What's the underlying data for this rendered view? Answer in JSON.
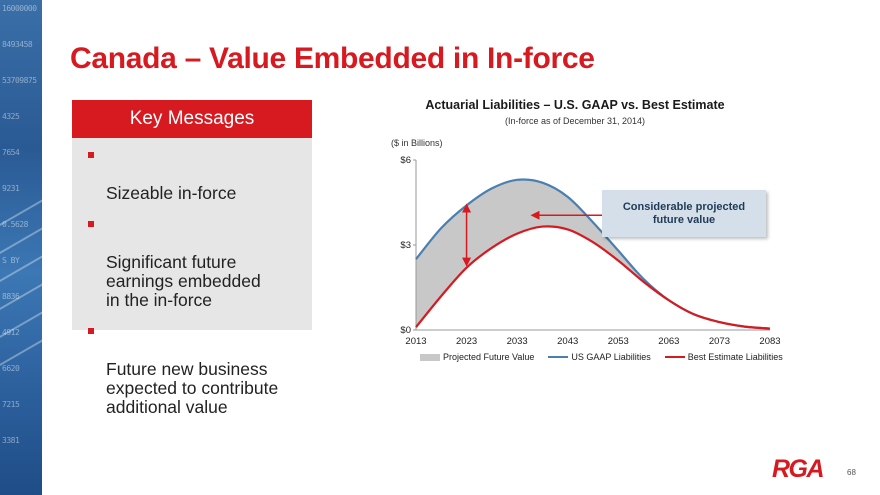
{
  "slide": {
    "title": "Canada – Value Embedded in In-force",
    "page_number": "68",
    "logo_text": "RGA",
    "left_strip": {
      "ticker_lines": [
        "16000000",
        "8493458",
        "53709875",
        "4325",
        "7654",
        "9231",
        "0.5628",
        "S BY",
        "8836",
        "4912",
        "6620",
        "7215",
        "3381"
      ]
    }
  },
  "key_messages": {
    "header": "Key Messages",
    "items": [
      "Sizeable in-force",
      "Significant future earnings embedded\nin the in-force",
      "Future new business expected to contribute additional value"
    ]
  },
  "callout": {
    "text": "Considerable projected future value"
  },
  "chart_data": {
    "type": "area",
    "title": "Actuarial Liabilities – U.S. GAAP vs. Best Estimate",
    "subtitle": "(In-force as of December 31, 2014)",
    "unit_label": "($ in Billions)",
    "xlim": [
      2013,
      2083
    ],
    "ylim": [
      0,
      6
    ],
    "x_ticks": [
      "2013",
      "2023",
      "2033",
      "2043",
      "2053",
      "2063",
      "2073",
      "2083"
    ],
    "y_ticks": [
      {
        "value": 0,
        "label": "$0"
      },
      {
        "value": 3,
        "label": "$3"
      },
      {
        "value": 6,
        "label": "$6"
      }
    ],
    "x": [
      2013,
      2018,
      2023,
      2028,
      2033,
      2038,
      2043,
      2048,
      2053,
      2058,
      2063,
      2068,
      2073,
      2078,
      2083
    ],
    "series": [
      {
        "name": "US GAAP Liabilities",
        "color": "#4a7fb0",
        "values": [
          2.5,
          3.6,
          4.4,
          5.0,
          5.3,
          5.2,
          4.7,
          3.8,
          2.8,
          1.8,
          1.05,
          0.55,
          0.28,
          0.12,
          0.05
        ]
      },
      {
        "name": "Best Estimate Liabilities",
        "color": "#d71920",
        "values": [
          0.1,
          1.2,
          2.2,
          2.9,
          3.4,
          3.65,
          3.55,
          3.1,
          2.45,
          1.7,
          1.05,
          0.55,
          0.28,
          0.12,
          0.05
        ]
      }
    ],
    "area": {
      "name": "Projected Future Value",
      "color": "#c8c8c8"
    },
    "annotation_arrows": [
      {
        "type": "double",
        "x": 2023,
        "y_from": 2.3,
        "y_to": 4.4
      },
      {
        "type": "single",
        "from": {
          "x": 2058,
          "y": 4.05
        },
        "to": {
          "x": 2036,
          "y": 4.05
        }
      }
    ],
    "legend": [
      "Projected Future Value",
      "US GAAP Liabilities",
      "Best Estimate Liabilities"
    ],
    "legend_position": "bottom",
    "grid": false
  }
}
